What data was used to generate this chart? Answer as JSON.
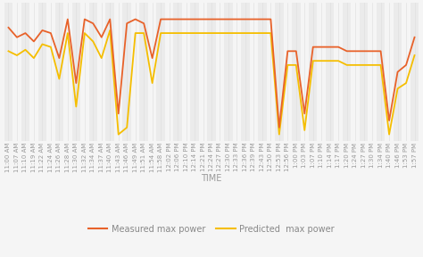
{
  "time_labels": [
    "11:00 AM",
    "11:07 AM",
    "11:10 AM",
    "11:19 AM",
    "11:22 AM",
    "11:24 AM",
    "11:26 AM",
    "11:28 AM",
    "11:30 AM",
    "11:32 AM",
    "11:34 AM",
    "11:37 AM",
    "11:40 AM",
    "11:43 AM",
    "11:46 AM",
    "11:49 AM",
    "11:51 AM",
    "11:54 AM",
    "11:58 AM",
    "12:02 PM",
    "12:06 PM",
    "12:10 PM",
    "12:14 PM",
    "12:21 PM",
    "12:24 PM",
    "12:27 PM",
    "12:30 PM",
    "12:33 PM",
    "12:36 PM",
    "12:39 PM",
    "12:43 PM",
    "12:50 PM",
    "12:53 PM",
    "12:56 PM",
    "1:00 PM",
    "1:03 PM",
    "1:07 PM",
    "1:10 PM",
    "1:14 PM",
    "1:17 PM",
    "1:20 PM",
    "1:24 PM",
    "1:27 PM",
    "1:30 PM",
    "1:34 PM",
    "1:40 PM",
    "1:46 PM",
    "1:53 PM",
    "1:57 PM"
  ],
  "measured": [
    82,
    75,
    78,
    72,
    80,
    78,
    60,
    88,
    42,
    88,
    85,
    75,
    88,
    20,
    85,
    88,
    85,
    60,
    88,
    88,
    88,
    88,
    88,
    88,
    88,
    88,
    88,
    88,
    88,
    88,
    88,
    88,
    10,
    65,
    65,
    20,
    68,
    68,
    68,
    68,
    65,
    65,
    65,
    65,
    65,
    15,
    50,
    55,
    75
  ],
  "predicted": [
    65,
    62,
    66,
    60,
    70,
    68,
    45,
    78,
    25,
    78,
    72,
    60,
    80,
    5,
    10,
    78,
    78,
    42,
    78,
    78,
    78,
    78,
    78,
    78,
    78,
    78,
    78,
    78,
    78,
    78,
    78,
    78,
    5,
    55,
    55,
    8,
    58,
    58,
    58,
    58,
    55,
    55,
    55,
    55,
    55,
    5,
    38,
    42,
    62
  ],
  "measured_color": "#E8622A",
  "predicted_color": "#F5BE00",
  "background_color": "#f5f5f5",
  "grid_color": "#dddddd",
  "xlabel": "TIME",
  "legend_measured": "Measured max power",
  "legend_predicted": "Predicted  max power",
  "tick_fontsize": 5.0,
  "label_fontsize": 7.0,
  "ylim_min": 0,
  "ylim_max": 100
}
